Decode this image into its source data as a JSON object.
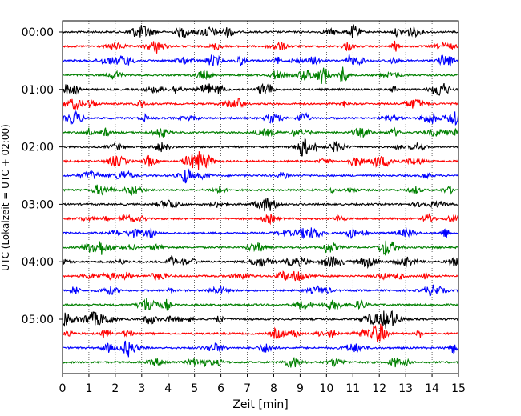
{
  "chart_data": {
    "type": "line",
    "xlabel": "Zeit  [min]",
    "ylabel": "UTC (Lokalzeit = UTC + 02:00)",
    "xlim": [
      0,
      15
    ],
    "xticks": [
      "0",
      "1",
      "2",
      "3",
      "4",
      "5",
      "6",
      "7",
      "8",
      "9",
      "10",
      "11",
      "12",
      "13",
      "14",
      "15"
    ],
    "yticks": [
      {
        "label": "00:00",
        "trace": 0
      },
      {
        "label": "01:00",
        "trace": 4
      },
      {
        "label": "02:00",
        "trace": 8
      },
      {
        "label": "03:00",
        "trace": 12
      },
      {
        "label": "04:00",
        "trace": 16
      },
      {
        "label": "05:00",
        "trace": 20
      }
    ],
    "grid": "vertical dotted lines at each minute",
    "trace_interval_min": 15,
    "trace_count": 24,
    "colors": [
      "#000000",
      "#ff0000",
      "#0000ff",
      "#008000"
    ]
  }
}
